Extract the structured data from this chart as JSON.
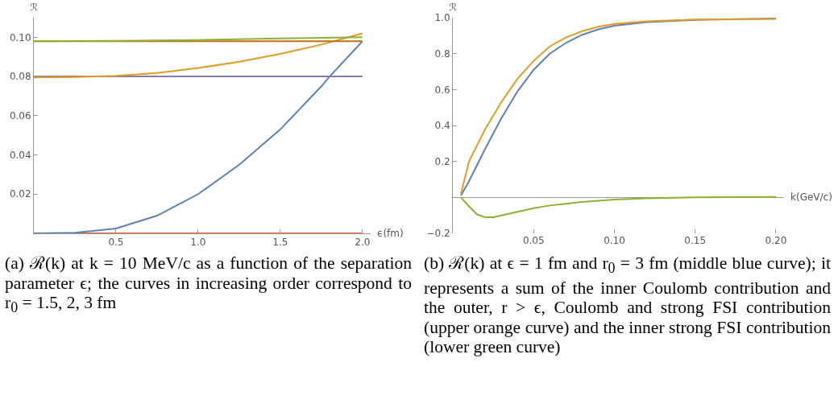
{
  "chart_data": [
    {
      "type": "line",
      "xlabel": "ϵ(fm)",
      "ylabel": "ℛ",
      "xlim": [
        0,
        2.05
      ],
      "ylim": [
        0,
        0.11
      ],
      "xticks": [
        0.5,
        {
          "value": 1,
          "label": "1.0"
        },
        1.5,
        {
          "value": 2,
          "label": "2.0"
        }
      ],
      "yticks": [
        0.02,
        0.04,
        0.06,
        0.08,
        {
          "value": 0.1,
          "label": "0.10"
        }
      ],
      "grid": false,
      "annotations": [
        "(a) ℛ(k) at k = 10 MeV/c as a function of the separation parameter ϵ; the curves in increasing order correspond to r$_{0}$ = 1.5, 2, 3 fm"
      ],
      "series": [
        {
          "color": "#eb6235",
          "x": [
            0,
            2
          ],
          "values": [
            0,
            0
          ]
        },
        {
          "color": "#5e81b5",
          "x": [
            0,
            0.25,
            0.5,
            0.75,
            1.0,
            1.25,
            1.5,
            1.75,
            1.8,
            2.0
          ],
          "values": [
            0,
            0.0003,
            0.0025,
            0.009,
            0.02,
            0.035,
            0.053,
            0.075,
            0.08,
            0.098
          ]
        },
        {
          "color": "#8778b3",
          "x": [
            0,
            2
          ],
          "values": [
            0.08,
            0.08
          ]
        },
        {
          "color": "#e19c24",
          "x": [
            0,
            0.25,
            0.5,
            0.75,
            1.0,
            1.25,
            1.5,
            1.75,
            2.0
          ],
          "values": [
            0.0795,
            0.0797,
            0.0803,
            0.0818,
            0.0843,
            0.0875,
            0.0915,
            0.0963,
            0.102
          ]
        },
        {
          "color": "#c56e1a",
          "x": [
            0,
            2
          ],
          "values": [
            0.098,
            0.098
          ]
        },
        {
          "color": "#8fb032",
          "x": [
            0,
            0.5,
            1.0,
            1.5,
            2.0
          ],
          "values": [
            0.098,
            0.0982,
            0.0986,
            0.0994,
            0.1
          ]
        }
      ]
    },
    {
      "type": "line",
      "xlabel": "k(GeV/c)",
      "ylabel": "ℛ",
      "xlim": [
        0,
        0.205
      ],
      "ylim": [
        -0.2,
        1.0
      ],
      "xticks": [
        0.05,
        {
          "value": 0.1,
          "label": "0.10"
        },
        0.15,
        {
          "value": 0.2,
          "label": "0.20"
        }
      ],
      "yticks": [
        {
          "value": -0.2,
          "label": "−0.2"
        },
        0.2,
        0.4,
        0.6,
        0.8,
        {
          "value": 1,
          "label": "1.0"
        }
      ],
      "grid": false,
      "annotations": [
        "(b) ℛ(k) at ϵ = 1 fm and r$_{0}$ = 3 fm (middle blue curve); it represents a sum of the inner Coulomb contribution and the outer, r > ϵ, Coulomb and strong FSI contribution (upper orange curve) and the inner strong FSI contribution (lower green curve)"
      ],
      "series": [
        {
          "color": "#5e81b5",
          "x": [
            0.005,
            0.01,
            0.02,
            0.03,
            0.04,
            0.05,
            0.06,
            0.07,
            0.08,
            0.09,
            0.1,
            0.12,
            0.15,
            0.2
          ],
          "values": [
            0.01,
            0.09,
            0.27,
            0.44,
            0.59,
            0.71,
            0.8,
            0.86,
            0.905,
            0.935,
            0.955,
            0.975,
            0.988,
            0.995
          ]
        },
        {
          "color": "#e19c24",
          "x": [
            0.005,
            0.01,
            0.02,
            0.03,
            0.04,
            0.05,
            0.06,
            0.07,
            0.08,
            0.09,
            0.1,
            0.12,
            0.15,
            0.2
          ],
          "values": [
            0.02,
            0.2,
            0.38,
            0.53,
            0.66,
            0.76,
            0.84,
            0.89,
            0.925,
            0.95,
            0.965,
            0.98,
            0.99,
            0.993
          ]
        },
        {
          "color": "#8fb032",
          "x": [
            0.005,
            0.01,
            0.015,
            0.02,
            0.025,
            0.03,
            0.04,
            0.05,
            0.06,
            0.08,
            0.1,
            0.12,
            0.15,
            0.2
          ],
          "values": [
            0,
            -0.05,
            -0.095,
            -0.11,
            -0.11,
            -0.1,
            -0.08,
            -0.06,
            -0.045,
            -0.025,
            -0.012,
            -0.005,
            0,
            0.003
          ]
        }
      ]
    }
  ]
}
